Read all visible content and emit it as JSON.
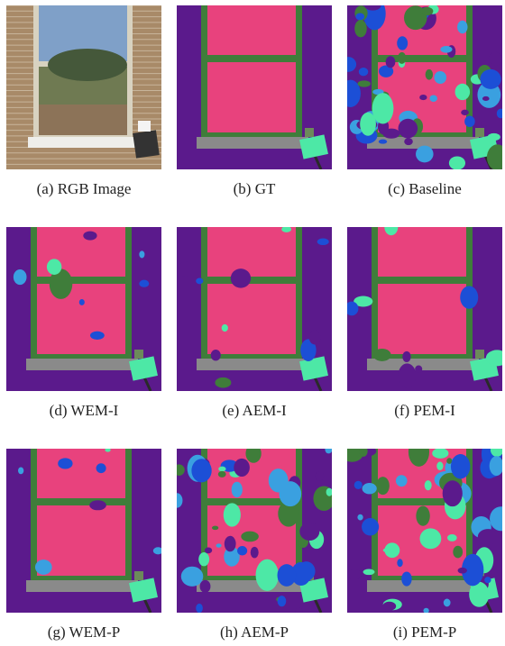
{
  "panels": [
    {
      "caption": "(a) RGB Image"
    },
    {
      "caption": "(b) GT"
    },
    {
      "caption": "(c) Baseline"
    },
    {
      "caption": "(d) WEM-I"
    },
    {
      "caption": "(e) AEM-I"
    },
    {
      "caption": "(f) PEM-I"
    },
    {
      "caption": "(g) WEM-P"
    },
    {
      "caption": "(h) AEM-P"
    },
    {
      "caption": "(i) PEM-P"
    }
  ]
}
